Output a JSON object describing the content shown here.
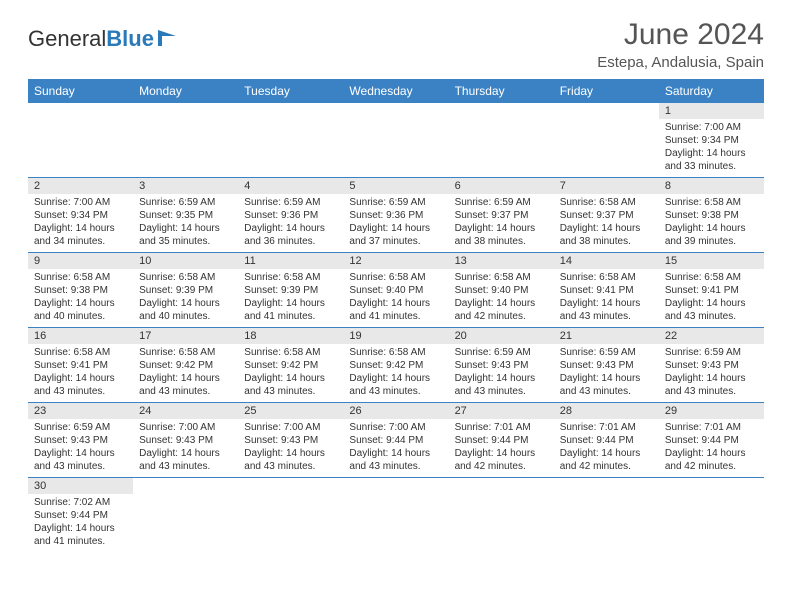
{
  "logo": {
    "text1": "General",
    "text2": "Blue"
  },
  "title": "June 2024",
  "subtitle": "Estepa, Andalusia, Spain",
  "colors": {
    "header_bg": "#3b82c4",
    "header_text": "#ffffff",
    "daynum_bg": "#e8e8e8",
    "border": "#3b82c4",
    "title_color": "#555555",
    "logo_blue": "#2a7ab9"
  },
  "weekdays": [
    "Sunday",
    "Monday",
    "Tuesday",
    "Wednesday",
    "Thursday",
    "Friday",
    "Saturday"
  ],
  "weeks": [
    [
      null,
      null,
      null,
      null,
      null,
      null,
      {
        "n": "1",
        "sr": "Sunrise: 7:00 AM",
        "ss": "Sunset: 9:34 PM",
        "d1": "Daylight: 14 hours",
        "d2": "and 33 minutes."
      }
    ],
    [
      {
        "n": "2",
        "sr": "Sunrise: 7:00 AM",
        "ss": "Sunset: 9:34 PM",
        "d1": "Daylight: 14 hours",
        "d2": "and 34 minutes."
      },
      {
        "n": "3",
        "sr": "Sunrise: 6:59 AM",
        "ss": "Sunset: 9:35 PM",
        "d1": "Daylight: 14 hours",
        "d2": "and 35 minutes."
      },
      {
        "n": "4",
        "sr": "Sunrise: 6:59 AM",
        "ss": "Sunset: 9:36 PM",
        "d1": "Daylight: 14 hours",
        "d2": "and 36 minutes."
      },
      {
        "n": "5",
        "sr": "Sunrise: 6:59 AM",
        "ss": "Sunset: 9:36 PM",
        "d1": "Daylight: 14 hours",
        "d2": "and 37 minutes."
      },
      {
        "n": "6",
        "sr": "Sunrise: 6:59 AM",
        "ss": "Sunset: 9:37 PM",
        "d1": "Daylight: 14 hours",
        "d2": "and 38 minutes."
      },
      {
        "n": "7",
        "sr": "Sunrise: 6:58 AM",
        "ss": "Sunset: 9:37 PM",
        "d1": "Daylight: 14 hours",
        "d2": "and 38 minutes."
      },
      {
        "n": "8",
        "sr": "Sunrise: 6:58 AM",
        "ss": "Sunset: 9:38 PM",
        "d1": "Daylight: 14 hours",
        "d2": "and 39 minutes."
      }
    ],
    [
      {
        "n": "9",
        "sr": "Sunrise: 6:58 AM",
        "ss": "Sunset: 9:38 PM",
        "d1": "Daylight: 14 hours",
        "d2": "and 40 minutes."
      },
      {
        "n": "10",
        "sr": "Sunrise: 6:58 AM",
        "ss": "Sunset: 9:39 PM",
        "d1": "Daylight: 14 hours",
        "d2": "and 40 minutes."
      },
      {
        "n": "11",
        "sr": "Sunrise: 6:58 AM",
        "ss": "Sunset: 9:39 PM",
        "d1": "Daylight: 14 hours",
        "d2": "and 41 minutes."
      },
      {
        "n": "12",
        "sr": "Sunrise: 6:58 AM",
        "ss": "Sunset: 9:40 PM",
        "d1": "Daylight: 14 hours",
        "d2": "and 41 minutes."
      },
      {
        "n": "13",
        "sr": "Sunrise: 6:58 AM",
        "ss": "Sunset: 9:40 PM",
        "d1": "Daylight: 14 hours",
        "d2": "and 42 minutes."
      },
      {
        "n": "14",
        "sr": "Sunrise: 6:58 AM",
        "ss": "Sunset: 9:41 PM",
        "d1": "Daylight: 14 hours",
        "d2": "and 43 minutes."
      },
      {
        "n": "15",
        "sr": "Sunrise: 6:58 AM",
        "ss": "Sunset: 9:41 PM",
        "d1": "Daylight: 14 hours",
        "d2": "and 43 minutes."
      }
    ],
    [
      {
        "n": "16",
        "sr": "Sunrise: 6:58 AM",
        "ss": "Sunset: 9:41 PM",
        "d1": "Daylight: 14 hours",
        "d2": "and 43 minutes."
      },
      {
        "n": "17",
        "sr": "Sunrise: 6:58 AM",
        "ss": "Sunset: 9:42 PM",
        "d1": "Daylight: 14 hours",
        "d2": "and 43 minutes."
      },
      {
        "n": "18",
        "sr": "Sunrise: 6:58 AM",
        "ss": "Sunset: 9:42 PM",
        "d1": "Daylight: 14 hours",
        "d2": "and 43 minutes."
      },
      {
        "n": "19",
        "sr": "Sunrise: 6:58 AM",
        "ss": "Sunset: 9:42 PM",
        "d1": "Daylight: 14 hours",
        "d2": "and 43 minutes."
      },
      {
        "n": "20",
        "sr": "Sunrise: 6:59 AM",
        "ss": "Sunset: 9:43 PM",
        "d1": "Daylight: 14 hours",
        "d2": "and 43 minutes."
      },
      {
        "n": "21",
        "sr": "Sunrise: 6:59 AM",
        "ss": "Sunset: 9:43 PM",
        "d1": "Daylight: 14 hours",
        "d2": "and 43 minutes."
      },
      {
        "n": "22",
        "sr": "Sunrise: 6:59 AM",
        "ss": "Sunset: 9:43 PM",
        "d1": "Daylight: 14 hours",
        "d2": "and 43 minutes."
      }
    ],
    [
      {
        "n": "23",
        "sr": "Sunrise: 6:59 AM",
        "ss": "Sunset: 9:43 PM",
        "d1": "Daylight: 14 hours",
        "d2": "and 43 minutes."
      },
      {
        "n": "24",
        "sr": "Sunrise: 7:00 AM",
        "ss": "Sunset: 9:43 PM",
        "d1": "Daylight: 14 hours",
        "d2": "and 43 minutes."
      },
      {
        "n": "25",
        "sr": "Sunrise: 7:00 AM",
        "ss": "Sunset: 9:43 PM",
        "d1": "Daylight: 14 hours",
        "d2": "and 43 minutes."
      },
      {
        "n": "26",
        "sr": "Sunrise: 7:00 AM",
        "ss": "Sunset: 9:44 PM",
        "d1": "Daylight: 14 hours",
        "d2": "and 43 minutes."
      },
      {
        "n": "27",
        "sr": "Sunrise: 7:01 AM",
        "ss": "Sunset: 9:44 PM",
        "d1": "Daylight: 14 hours",
        "d2": "and 42 minutes."
      },
      {
        "n": "28",
        "sr": "Sunrise: 7:01 AM",
        "ss": "Sunset: 9:44 PM",
        "d1": "Daylight: 14 hours",
        "d2": "and 42 minutes."
      },
      {
        "n": "29",
        "sr": "Sunrise: 7:01 AM",
        "ss": "Sunset: 9:44 PM",
        "d1": "Daylight: 14 hours",
        "d2": "and 42 minutes."
      }
    ],
    [
      {
        "n": "30",
        "sr": "Sunrise: 7:02 AM",
        "ss": "Sunset: 9:44 PM",
        "d1": "Daylight: 14 hours",
        "d2": "and 41 minutes."
      },
      null,
      null,
      null,
      null,
      null,
      null
    ]
  ]
}
